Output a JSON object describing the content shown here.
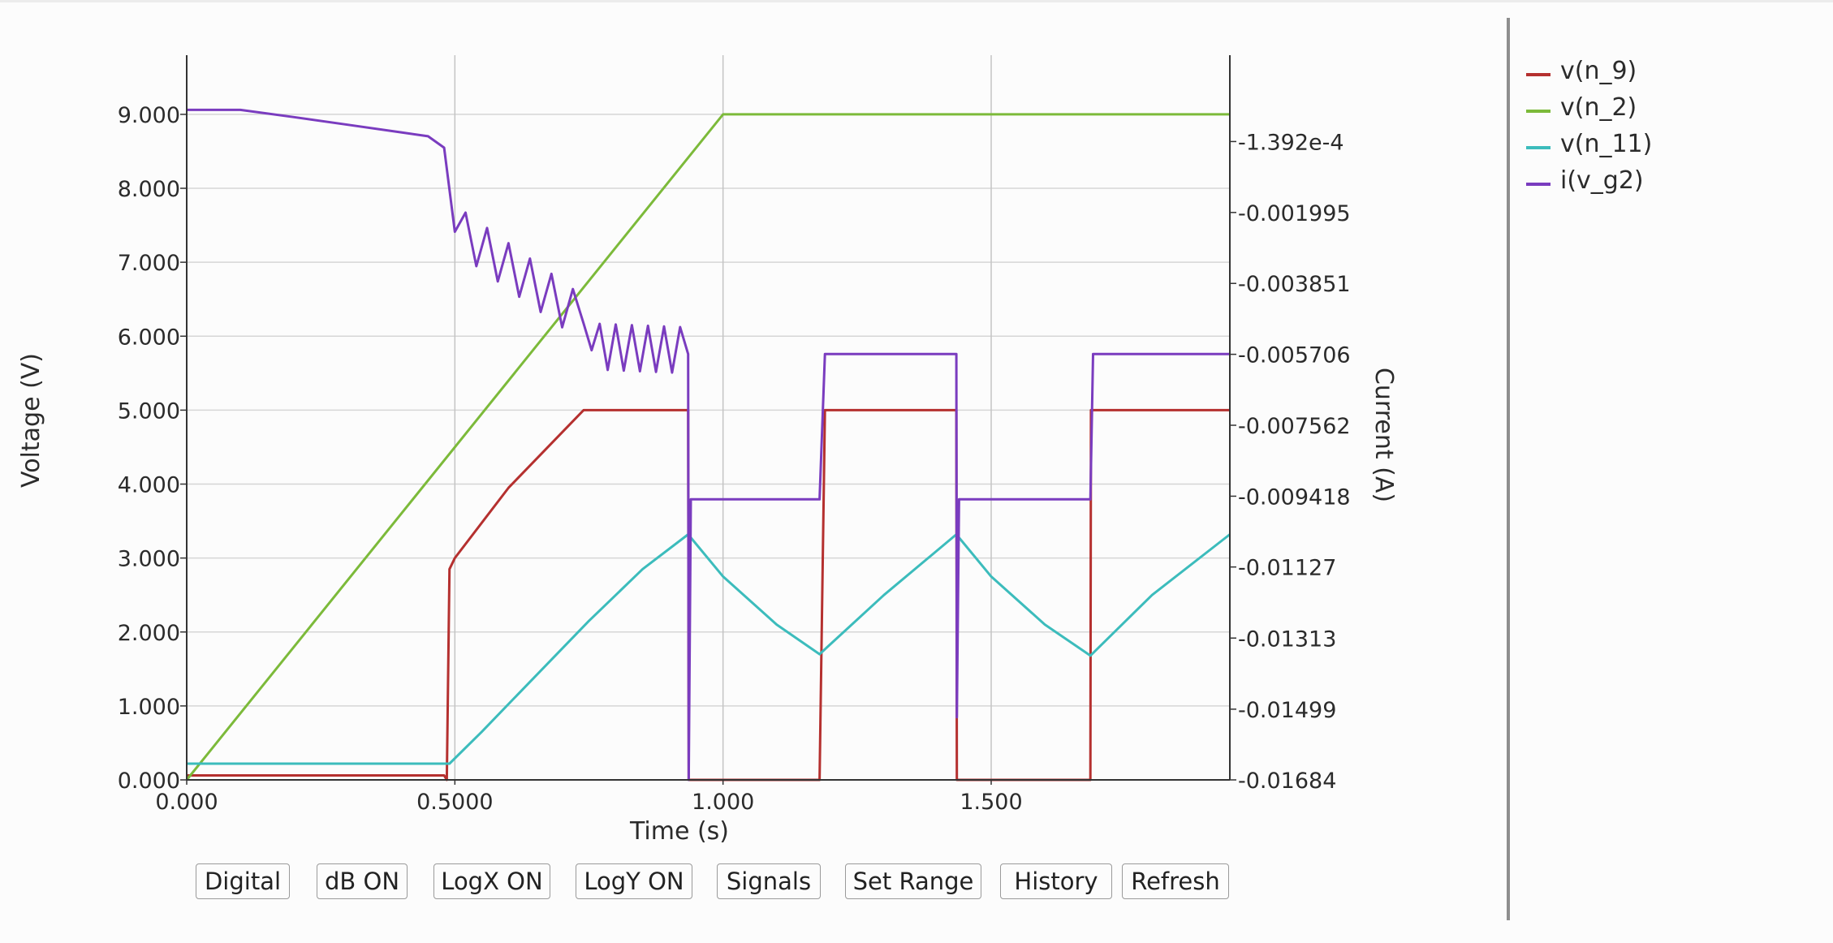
{
  "chart_data": {
    "type": "line",
    "xlabel": "Time (s)",
    "ylabel": "Voltage (V)",
    "y2label": "Current (A)",
    "xlim": [
      0,
      1.945
    ],
    "ylim": [
      0,
      9.8
    ],
    "y2lim": [
      -0.01684,
      0.00212
    ],
    "x_ticks": [
      0,
      0.5,
      1.0,
      1.5
    ],
    "x_tick_labels": [
      "0.000",
      "0.5000",
      "1.000",
      "1.500"
    ],
    "y_ticks": [
      0,
      1,
      2,
      3,
      4,
      5,
      6,
      7,
      8,
      9
    ],
    "y_tick_labels": [
      "0.000",
      "1.000",
      "2.000",
      "3.000",
      "4.000",
      "5.000",
      "6.000",
      "7.000",
      "8.000",
      "9.000"
    ],
    "y2_ticks": [
      -0.01684,
      -0.01499,
      -0.01313,
      -0.01127,
      -0.009418,
      -0.007562,
      -0.005706,
      -0.003851,
      -0.001995,
      -0.0001392
    ],
    "y2_tick_labels": [
      "-0.01684",
      "-0.01499",
      "-0.01313",
      "-0.01127",
      "-0.009418",
      "-0.007562",
      "-0.005706",
      "-0.003851",
      "-0.001995",
      "-1.392e-4"
    ],
    "grid": true,
    "legend_position": "right",
    "series": [
      {
        "name": "v(n_9)",
        "color": "#b5302f",
        "axis": "left",
        "x": [
          0,
          0.48,
          0.485,
          0.49,
          0.5,
          0.6,
          0.7,
          0.74,
          0.935,
          0.936,
          1.18,
          1.19,
          1.435,
          1.436,
          1.685,
          1.686,
          1.945
        ],
        "y": [
          0.06,
          0.06,
          0.0,
          2.85,
          3.0,
          3.95,
          4.7,
          5.0,
          5.0,
          0.0,
          0.0,
          5.0,
          5.0,
          0.0,
          0.0,
          5.0,
          5.0
        ]
      },
      {
        "name": "v(n_2)",
        "color": "#7cba3a",
        "axis": "left",
        "x": [
          0,
          1.0,
          1.945
        ],
        "y": [
          0.0,
          9.0,
          9.0
        ]
      },
      {
        "name": "v(n_11)",
        "color": "#3cbcbc",
        "axis": "left",
        "x": [
          0,
          0.49,
          0.55,
          0.65,
          0.75,
          0.85,
          0.935,
          1.0,
          1.1,
          1.18,
          1.3,
          1.435,
          1.5,
          1.6,
          1.685,
          1.8,
          1.945
        ],
        "y": [
          0.22,
          0.22,
          0.65,
          1.4,
          2.15,
          2.85,
          3.32,
          2.75,
          2.1,
          1.7,
          2.5,
          3.32,
          2.75,
          2.1,
          1.68,
          2.5,
          3.32
        ]
      },
      {
        "name": "i(v_g2)",
        "color": "#7a3cbf",
        "axis": "right",
        "x": [
          0,
          0.1,
          0.2,
          0.3,
          0.4,
          0.45,
          0.48,
          0.5,
          0.74,
          0.755,
          0.935,
          0.936,
          0.94,
          1.18,
          1.19,
          1.435,
          1.436,
          1.44,
          1.685,
          1.69,
          1.945
        ],
        "y": [
          0.00069,
          0.00069,
          0.0005,
          0.0003,
          0.0001,
          0.0,
          -0.0003,
          -0.0025,
          -0.0049,
          -0.0056,
          -0.0057,
          -0.01684,
          -0.0095,
          -0.0095,
          -0.0057,
          -0.0057,
          -0.0152,
          -0.0095,
          -0.0095,
          -0.0057,
          -0.0057
        ]
      }
    ]
  },
  "legend": [
    {
      "label": "v(n_9)",
      "color": "#b5302f"
    },
    {
      "label": "v(n_2)",
      "color": "#7cba3a"
    },
    {
      "label": "v(n_11)",
      "color": "#3cbcbc"
    },
    {
      "label": "i(v_g2)",
      "color": "#7a3cbf"
    }
  ],
  "toolbar": {
    "digital": "Digital",
    "db": "dB ON",
    "logx": "LogX ON",
    "logy": "LogY ON",
    "signals": "Signals",
    "set_range": "Set Range",
    "history": "History",
    "refresh": "Refresh"
  }
}
